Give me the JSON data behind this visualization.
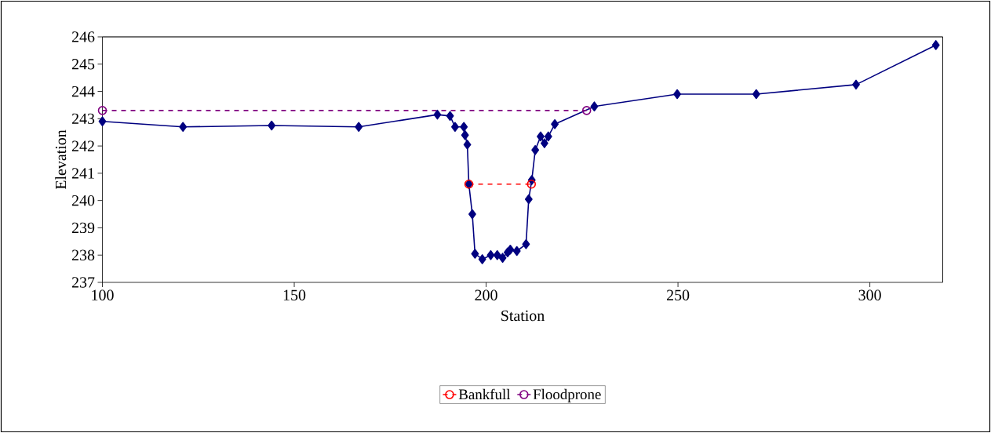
{
  "chart_data": {
    "type": "line",
    "xlabel": "Station",
    "ylabel": "Elevation",
    "xlim": [
      100,
      319
    ],
    "ylim": [
      237,
      246
    ],
    "xticks": [
      100,
      150,
      200,
      250,
      300
    ],
    "yticks": [
      237,
      238,
      239,
      240,
      241,
      242,
      243,
      244,
      245,
      246
    ],
    "legend": "bottom",
    "series": [
      {
        "color": "#000080",
        "marker": "diamond",
        "line_style": "solid",
        "x": [
          100,
          121,
          144.1,
          166.8,
          187.3,
          190.6,
          191.9,
          194.2,
          194.5,
          195.1,
          195.5,
          196.4,
          197.1,
          199,
          201.2,
          202.9,
          204.3,
          205.6,
          206.3,
          208,
          210.4,
          211.1,
          211.9,
          212.8,
          214.2,
          215.2,
          216.2,
          217.9,
          228.2,
          249.8,
          270.4,
          296.4,
          317.2
        ],
        "values": [
          242.9,
          242.7,
          242.75,
          242.7,
          243.15,
          243.1,
          242.7,
          242.7,
          242.4,
          242.05,
          240.6,
          239.5,
          238.05,
          237.85,
          238.0,
          238.0,
          237.9,
          238.1,
          238.2,
          238.15,
          238.4,
          240.05,
          240.75,
          241.85,
          242.35,
          242.1,
          242.35,
          242.8,
          243.45,
          243.9,
          243.9,
          244.25,
          245.7
        ]
      },
      {
        "name": "Bankfull",
        "color": "#ff0000",
        "marker": "circle",
        "line_style": "dashed",
        "x": [
          195.5,
          211.8
        ],
        "values": [
          240.6,
          240.6
        ]
      },
      {
        "name": "Floodprone",
        "color": "#800080",
        "marker": "circle",
        "line_style": "dashed",
        "x": [
          100,
          226.2
        ],
        "values": [
          243.3,
          243.3
        ]
      }
    ]
  }
}
